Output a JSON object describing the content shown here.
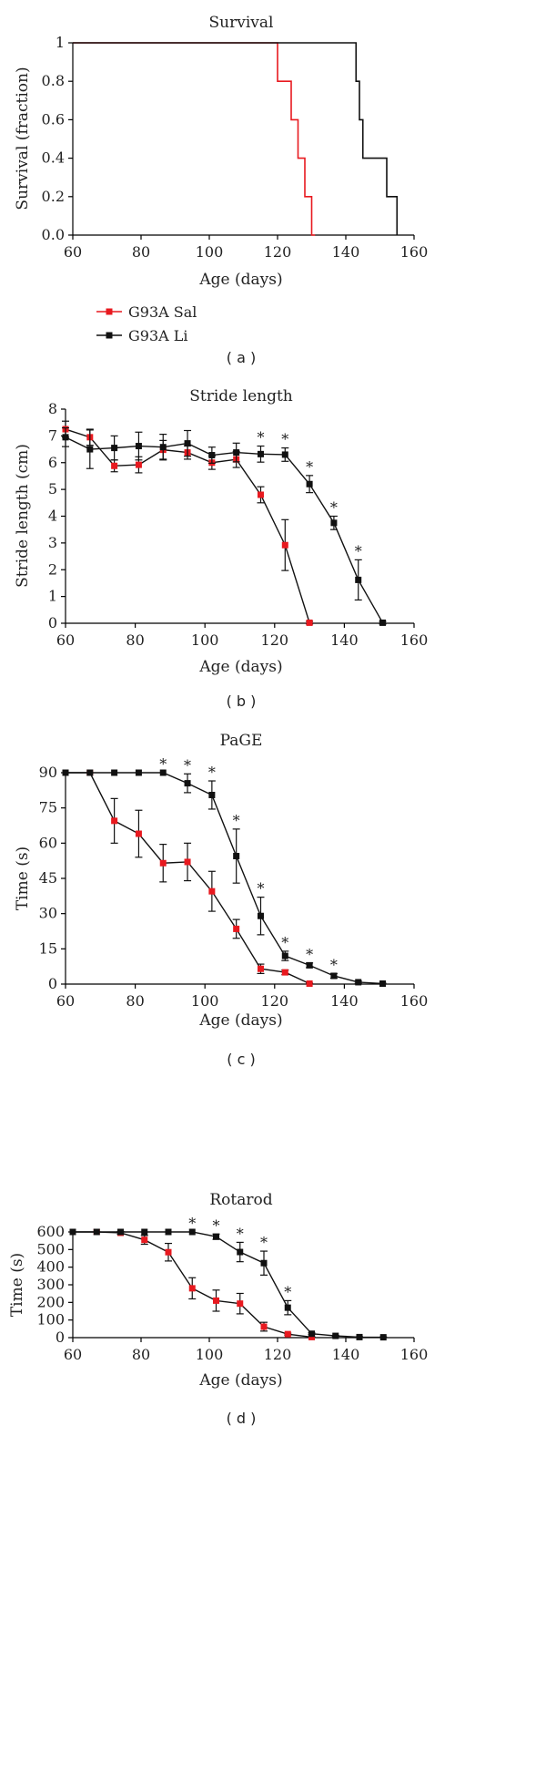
{
  "colors": {
    "sal": "#e8191f",
    "li": "#111111"
  },
  "legend": [
    {
      "name": "G93A Sal",
      "color": "#e8191f"
    },
    {
      "name": "G93A Li",
      "color": "#111111"
    }
  ],
  "chart_data": [
    {
      "id": "survival",
      "type": "line",
      "step": true,
      "title": "Survival",
      "panel": "( a )",
      "xlabel": "Age (days)",
      "ylabel": "Survival (fraction)",
      "xlim": [
        60,
        160
      ],
      "ylim": [
        0,
        1
      ],
      "xticks": [
        60,
        80,
        100,
        120,
        140,
        160
      ],
      "yticks": [
        0,
        0.2,
        0.4,
        0.6,
        0.8,
        1
      ],
      "ytick_labels": [
        "0.0",
        "0.2",
        "0.4",
        "0.6",
        "0.8",
        "1"
      ],
      "series": [
        {
          "name": "G93A Sal",
          "color": "#e8191f",
          "x": [
            60,
            120,
            124,
            126,
            128,
            130,
            131
          ],
          "y": [
            1,
            0.8,
            0.6,
            0.4,
            0.2,
            0,
            0
          ]
        },
        {
          "name": "G93A Li",
          "color": "#111111",
          "x": [
            60,
            143,
            144,
            145,
            152,
            155,
            155
          ],
          "y": [
            1,
            0.8,
            0.6,
            0.4,
            0.2,
            0,
            0
          ]
        }
      ]
    },
    {
      "id": "stride",
      "type": "line",
      "title": "Stride length",
      "panel": "( b )",
      "xlabel": "Age (days)",
      "ylabel": "Stride length (cm)",
      "xlim": [
        60,
        160
      ],
      "ylim": [
        0,
        8
      ],
      "xticks": [
        60,
        80,
        100,
        120,
        140,
        160
      ],
      "yticks": [
        0,
        1,
        2,
        3,
        4,
        5,
        6,
        7,
        8
      ],
      "ytick_labels": [
        "0",
        "1",
        "2",
        "3",
        "4",
        "5",
        "6",
        "7",
        "8"
      ],
      "series": [
        {
          "name": "G93A Sal",
          "color": "#e8191f",
          "x": [
            60,
            67,
            74,
            81,
            88,
            95,
            102,
            109,
            116,
            123,
            130
          ],
          "y": [
            7.25,
            6.95,
            5.88,
            5.92,
            6.48,
            6.38,
            6.0,
            6.12,
            4.8,
            2.92,
            0.02
          ],
          "err": [
            0.3,
            0.3,
            0.22,
            0.3,
            0.35,
            0.25,
            0.25,
            0.3,
            0.3,
            0.95,
            0.05
          ]
        },
        {
          "name": "G93A Li",
          "color": "#111111",
          "x": [
            60,
            67,
            74,
            81,
            88,
            95,
            102,
            109,
            116,
            123,
            130,
            137,
            144,
            151
          ],
          "y": [
            6.95,
            6.5,
            6.55,
            6.62,
            6.58,
            6.72,
            6.28,
            6.38,
            6.32,
            6.3,
            5.2,
            3.75,
            1.62,
            0.02
          ],
          "err": [
            0.35,
            0.72,
            0.45,
            0.52,
            0.48,
            0.48,
            0.3,
            0.35,
            0.3,
            0.25,
            0.32,
            0.25,
            0.75,
            0.05
          ]
        }
      ],
      "stars": [
        116,
        123,
        130,
        137,
        144
      ]
    },
    {
      "id": "page",
      "type": "line",
      "title": "PaGE",
      "panel": "( c )",
      "xlabel": "Age (days)",
      "ylabel": "Time (s)",
      "xlim": [
        60,
        160
      ],
      "ylim": [
        0,
        90
      ],
      "xticks": [
        60,
        80,
        100,
        120,
        140,
        160
      ],
      "yticks": [
        0,
        15,
        30,
        45,
        60,
        75,
        90
      ],
      "ytick_labels": [
        "0",
        "15",
        "30",
        "45",
        "60",
        "75",
        "90"
      ],
      "series": [
        {
          "name": "G93A Sal",
          "color": "#e8191f",
          "x": [
            60,
            67,
            74,
            81,
            88,
            95,
            102,
            109,
            116,
            123,
            130
          ],
          "y": [
            90,
            90,
            69.5,
            64,
            51.5,
            52,
            39.5,
            23.5,
            6.5,
            5,
            0.2
          ],
          "err": [
            0,
            0,
            9.5,
            10,
            8,
            8,
            8.5,
            4,
            2,
            1,
            0.2
          ]
        },
        {
          "name": "G93A Li",
          "color": "#111111",
          "x": [
            60,
            67,
            74,
            81,
            88,
            95,
            102,
            109,
            116,
            123,
            130,
            137,
            144,
            151
          ],
          "y": [
            90,
            90,
            90,
            90,
            90,
            85.5,
            80.5,
            54.5,
            29,
            12,
            8,
            3.5,
            0.8,
            0.2
          ],
          "err": [
            0,
            0,
            0,
            0,
            0,
            4,
            6,
            11.5,
            8,
            2,
            1,
            1,
            0.5,
            0.2
          ]
        }
      ],
      "stars": [
        88,
        95,
        102,
        109,
        116,
        123,
        130,
        137
      ]
    },
    {
      "id": "rotarod",
      "type": "line",
      "title": "Rotarod",
      "panel": "( d )",
      "xlabel": "Age (days)",
      "ylabel": "Time (s)",
      "xlim": [
        60,
        160
      ],
      "ylim": [
        0,
        600
      ],
      "xticks": [
        60,
        80,
        100,
        120,
        140,
        160
      ],
      "yticks": [
        0,
        100,
        200,
        300,
        400,
        500,
        600
      ],
      "ytick_labels": [
        "0",
        "100",
        "200",
        "300",
        "400",
        "500",
        "600"
      ],
      "series": [
        {
          "name": "G93A Sal",
          "color": "#e8191f",
          "x": [
            60,
            67,
            74,
            81,
            88,
            95,
            102,
            109,
            116,
            123,
            130
          ],
          "y": [
            600,
            600,
            595,
            555,
            485,
            280,
            210,
            193,
            62,
            20,
            3
          ],
          "err": [
            0,
            0,
            8,
            25,
            50,
            60,
            60,
            58,
            25,
            5,
            2
          ]
        },
        {
          "name": "G93A Li",
          "color": "#111111",
          "x": [
            60,
            67,
            74,
            81,
            88,
            95,
            102,
            109,
            116,
            123,
            130,
            137,
            144,
            151
          ],
          "y": [
            600,
            600,
            600,
            600,
            600,
            600,
            573,
            486,
            423,
            170,
            22,
            10,
            3,
            2
          ],
          "err": [
            0,
            0,
            0,
            0,
            0,
            0,
            15,
            55,
            68,
            40,
            5,
            3,
            2,
            2
          ]
        }
      ],
      "stars": [
        95,
        102,
        109,
        116,
        123
      ]
    }
  ]
}
